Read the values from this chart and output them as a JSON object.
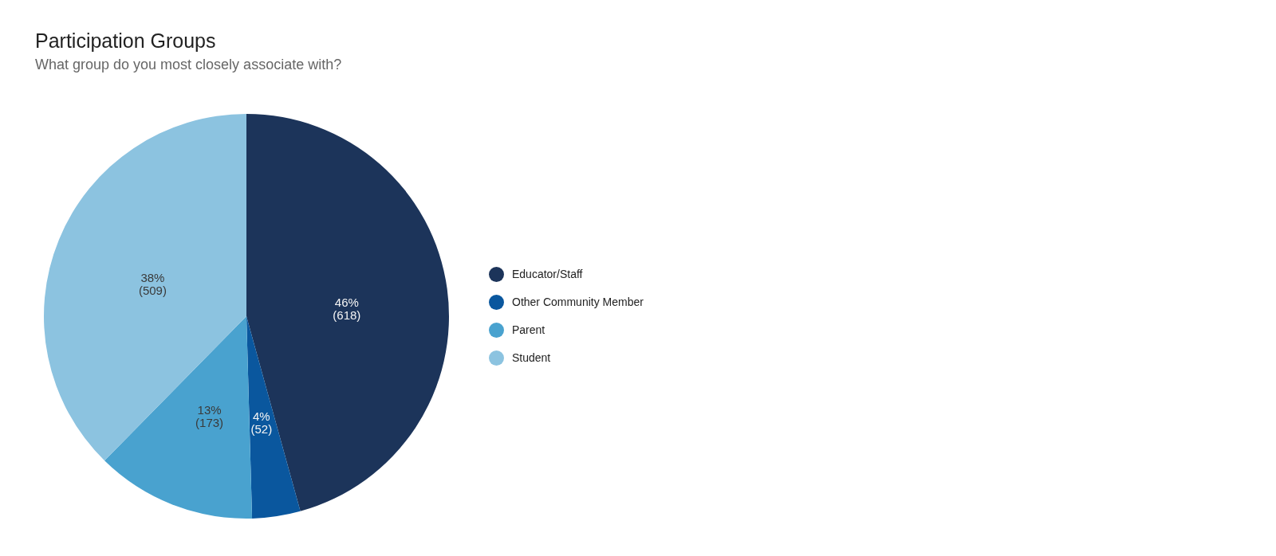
{
  "chart_data": {
    "type": "pie",
    "title": "Participation Groups",
    "subtitle": "What group do you most closely associate with?",
    "categories": [
      "Educator/Staff",
      "Other Community Member",
      "Parent",
      "Student"
    ],
    "values": [
      618,
      52,
      173,
      509
    ],
    "colors": [
      "#1c345a",
      "#0a579e",
      "#49a2cf",
      "#8cc3e0"
    ],
    "value_labels": [
      "46%\n(618)",
      "4%\n(52)",
      "13%\n(173)",
      "38%\n(509)"
    ],
    "legend": "right"
  }
}
